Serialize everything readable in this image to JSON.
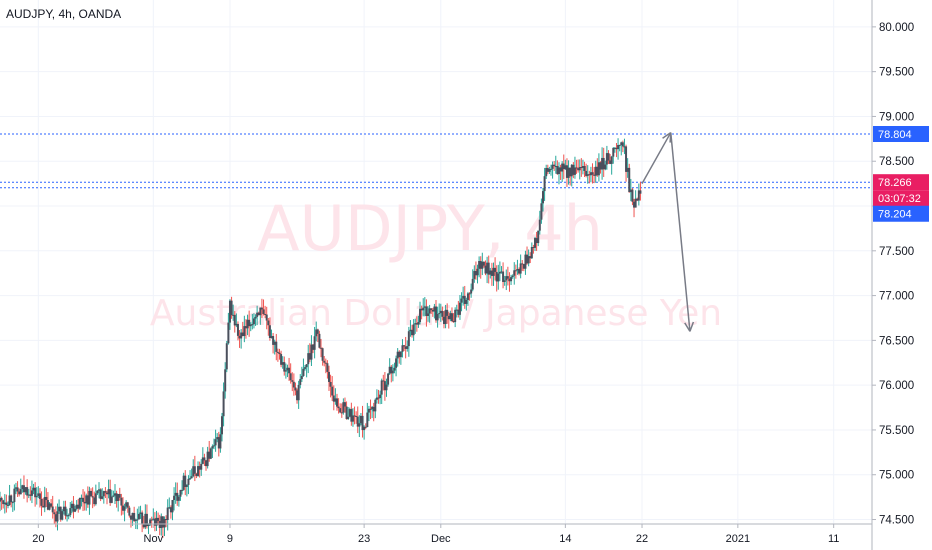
{
  "symbol_title": "AUDJPY, 4h, OANDA",
  "watermark": {
    "ticker": "AUDJPY, 4h",
    "name": "Australian Dollar / Japanese Yen"
  },
  "colors": {
    "up": "#26a69a",
    "down": "#ef5350",
    "candle_body": "#4a4f5c",
    "level_line": "#2962ff",
    "current_price": "#e91e63",
    "level_tag": "#2962ff",
    "arrow": "#787b86",
    "watermark": "#fde4ea"
  },
  "chart_data": {
    "type": "candlestick",
    "title": "AUDJPY, 4h, OANDA",
    "y_axis": {
      "position": "right",
      "range": [
        74.45,
        80.3
      ],
      "ticks": [
        "80.000",
        "79.500",
        "79.000",
        "78.500",
        "78.000",
        "77.500",
        "77.000",
        "76.500",
        "76.000",
        "75.500",
        "75.000",
        "74.500"
      ]
    },
    "x_axis": {
      "range": [
        "2020-10-16",
        "2021-01-15"
      ],
      "ticks": [
        {
          "label": "20",
          "date": "2020-10-20"
        },
        {
          "label": "Nov",
          "date": "2020-11-01"
        },
        {
          "label": "9",
          "date": "2020-11-09"
        },
        {
          "label": "23",
          "date": "2020-11-23"
        },
        {
          "label": "Dec",
          "date": "2020-12-01"
        },
        {
          "label": "14",
          "date": "2020-12-14"
        },
        {
          "label": "22",
          "date": "2020-12-22"
        },
        {
          "label": "2021",
          "date": "2021-01-01"
        },
        {
          "label": "11",
          "date": "2021-01-11"
        }
      ]
    },
    "grid": true,
    "price_path": [
      {
        "date": "2020-10-16",
        "price": 74.7
      },
      {
        "date": "2020-10-19",
        "price": 74.85
      },
      {
        "date": "2020-10-22",
        "price": 74.55
      },
      {
        "date": "2020-10-25",
        "price": 74.75
      },
      {
        "date": "2020-10-28",
        "price": 74.75
      },
      {
        "date": "2020-10-30",
        "price": 74.5
      },
      {
        "date": "2020-11-02",
        "price": 74.45
      },
      {
        "date": "2020-11-04",
        "price": 74.9
      },
      {
        "date": "2020-11-06",
        "price": 75.1
      },
      {
        "date": "2020-11-08",
        "price": 75.4
      },
      {
        "date": "2020-11-09",
        "price": 76.9
      },
      {
        "date": "2020-11-10",
        "price": 76.5
      },
      {
        "date": "2020-11-12",
        "price": 76.85
      },
      {
        "date": "2020-11-14",
        "price": 76.4
      },
      {
        "date": "2020-11-16",
        "price": 75.9
      },
      {
        "date": "2020-11-18",
        "price": 76.6
      },
      {
        "date": "2020-11-20",
        "price": 75.8
      },
      {
        "date": "2020-11-23",
        "price": 75.55
      },
      {
        "date": "2020-11-25",
        "price": 76.0
      },
      {
        "date": "2020-11-27",
        "price": 76.4
      },
      {
        "date": "2020-11-29",
        "price": 76.85
      },
      {
        "date": "2020-12-02",
        "price": 76.75
      },
      {
        "date": "2020-12-04",
        "price": 77.0
      },
      {
        "date": "2020-12-05",
        "price": 77.4
      },
      {
        "date": "2020-12-07",
        "price": 77.2
      },
      {
        "date": "2020-12-09",
        "price": 77.25
      },
      {
        "date": "2020-12-11",
        "price": 77.6
      },
      {
        "date": "2020-12-12",
        "price": 78.4
      },
      {
        "date": "2020-12-14",
        "price": 78.4
      },
      {
        "date": "2020-12-17",
        "price": 78.35
      },
      {
        "date": "2020-12-19",
        "price": 78.6
      },
      {
        "date": "2020-12-20",
        "price": 78.7
      },
      {
        "date": "2020-12-21",
        "price": 78.0
      },
      {
        "date": "2020-12-22",
        "price": 78.27
      }
    ],
    "levels": [
      78.804,
      78.266,
      78.204
    ],
    "price_tags": [
      {
        "label": "78.804",
        "kind": "level",
        "price": 78.804
      },
      {
        "label": "78.266",
        "kind": "current",
        "price": 78.266
      },
      {
        "label": "03:07:32",
        "kind": "countdown",
        "price": 78.266
      },
      {
        "label": "78.204",
        "kind": "level",
        "price": 78.204
      }
    ],
    "projection": [
      {
        "date": "2020-12-22",
        "price": 78.25
      },
      {
        "date": "2020-12-25",
        "price": 78.82
      },
      {
        "date": "2020-12-27",
        "price": 76.6
      }
    ]
  }
}
